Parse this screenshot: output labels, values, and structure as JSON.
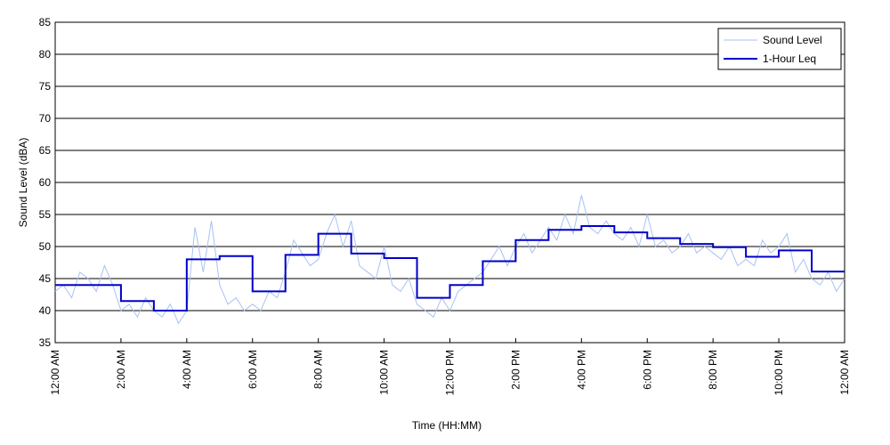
{
  "chart_data": {
    "type": "line",
    "xlabel": "Time (HH:MM)",
    "ylabel": "Sound Level (dBA)",
    "xlim": [
      0,
      24
    ],
    "ylim": [
      35,
      85
    ],
    "xticks": [
      {
        "value": 0,
        "label": "12:00 AM"
      },
      {
        "value": 2,
        "label": "2:00 AM"
      },
      {
        "value": 4,
        "label": "4:00 AM"
      },
      {
        "value": 6,
        "label": "6:00 AM"
      },
      {
        "value": 8,
        "label": "8:00 AM"
      },
      {
        "value": 10,
        "label": "10:00 AM"
      },
      {
        "value": 12,
        "label": "12:00 PM"
      },
      {
        "value": 14,
        "label": "2:00 PM"
      },
      {
        "value": 16,
        "label": "4:00 PM"
      },
      {
        "value": 18,
        "label": "6:00 PM"
      },
      {
        "value": 20,
        "label": "8:00 PM"
      },
      {
        "value": 22,
        "label": "10:00 PM"
      },
      {
        "value": 24,
        "label": "12:00 AM"
      }
    ],
    "yticks": [
      35,
      40,
      45,
      50,
      55,
      60,
      65,
      70,
      75,
      80,
      85
    ],
    "grid": true,
    "legend": "top-right",
    "series": [
      {
        "name": "Sound Level",
        "color": "#a9c1f2",
        "step": false,
        "x": [
          0,
          0.25,
          0.5,
          0.75,
          1,
          1.25,
          1.5,
          1.75,
          2,
          2.25,
          2.5,
          2.75,
          3,
          3.25,
          3.5,
          3.75,
          4,
          4.25,
          4.5,
          4.75,
          5,
          5.25,
          5.5,
          5.75,
          6,
          6.25,
          6.5,
          6.75,
          7,
          7.25,
          7.5,
          7.75,
          8,
          8.25,
          8.5,
          8.75,
          9,
          9.25,
          9.5,
          9.75,
          10,
          10.25,
          10.5,
          10.75,
          11,
          11.25,
          11.5,
          11.75,
          12,
          12.25,
          12.5,
          12.75,
          13,
          13.25,
          13.5,
          13.75,
          14,
          14.25,
          14.5,
          14.75,
          15,
          15.25,
          15.5,
          15.75,
          16,
          16.25,
          16.5,
          16.75,
          17,
          17.25,
          17.5,
          17.75,
          18,
          18.25,
          18.5,
          18.75,
          19,
          19.25,
          19.5,
          19.75,
          20,
          20.25,
          20.5,
          20.75,
          21,
          21.25,
          21.5,
          21.75,
          22,
          22.25,
          22.5,
          22.75,
          23,
          23.25,
          23.5,
          23.75,
          24
        ],
        "values": [
          43,
          44,
          42,
          46,
          45,
          43,
          47,
          44,
          40,
          41,
          39,
          42,
          40,
          39,
          41,
          38,
          40,
          53,
          46,
          54,
          44,
          41,
          42,
          40,
          41,
          40,
          43,
          42,
          46,
          51,
          49,
          47,
          48,
          52,
          55,
          50,
          54,
          47,
          46,
          45,
          50,
          44,
          43,
          45,
          41,
          40,
          39,
          42,
          40,
          43,
          44,
          45,
          46,
          48,
          50,
          47,
          50,
          52,
          49,
          51,
          53,
          51,
          55,
          52,
          58,
          53,
          52,
          54,
          52,
          51,
          53,
          50,
          55,
          50,
          51,
          49,
          50,
          52,
          49,
          50,
          49,
          48,
          50,
          47,
          48,
          47,
          51,
          49,
          50,
          52,
          46,
          48,
          45,
          44,
          46,
          43,
          45
        ]
      },
      {
        "name": "1-Hour Leq",
        "color": "#0000c8",
        "step": true,
        "x": [
          0,
          1,
          2,
          3,
          4,
          5,
          6,
          7,
          8,
          9,
          10,
          11,
          12,
          13,
          14,
          15,
          16,
          17,
          18,
          19,
          20,
          21,
          22,
          23
        ],
        "values": [
          44,
          44,
          41.5,
          40,
          48,
          48.5,
          43,
          48.7,
          52,
          48.9,
          48.2,
          42,
          44,
          47.7,
          51,
          52.6,
          53.2,
          52.2,
          51.3,
          50.4,
          49.9,
          48.4,
          49.4,
          46.1
        ]
      }
    ]
  }
}
